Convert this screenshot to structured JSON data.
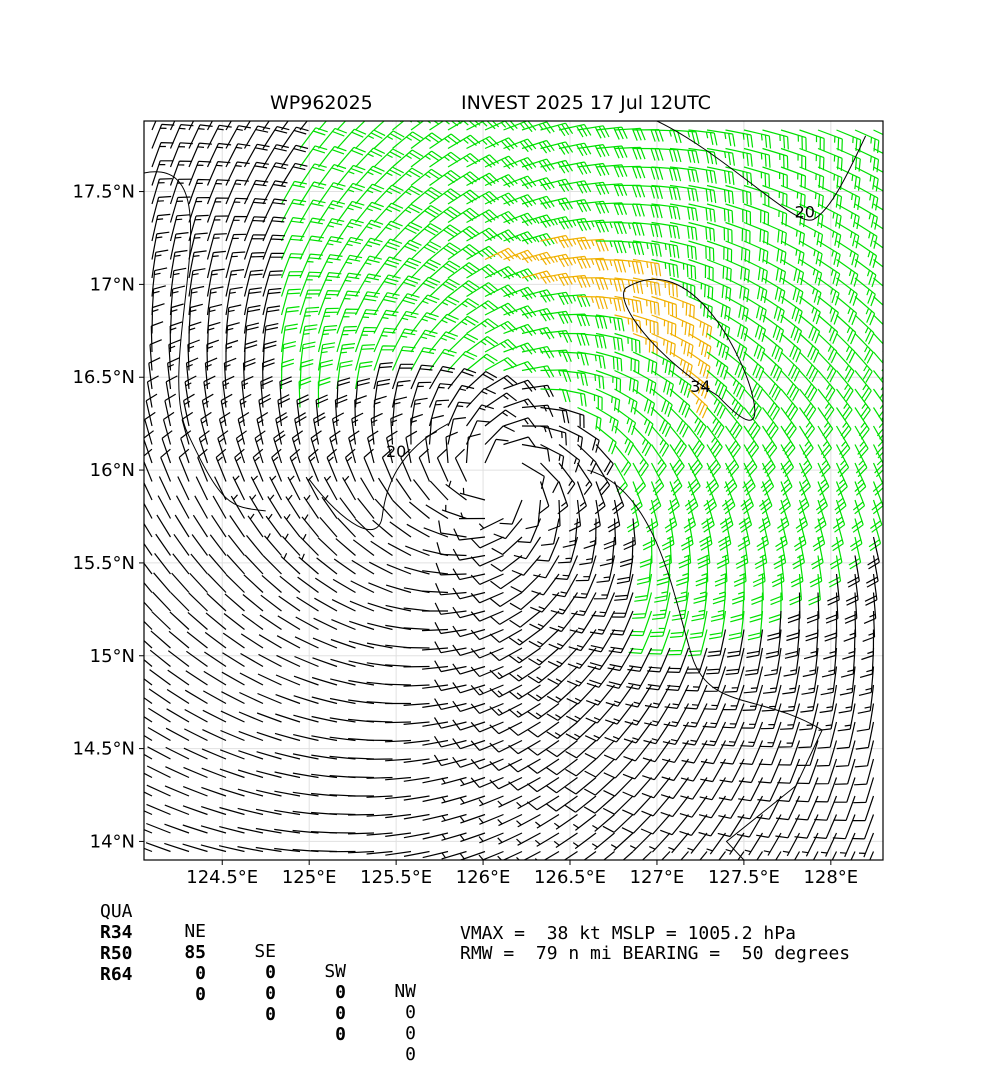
{
  "header": {
    "storm_id": "WP962025",
    "storm_name_time": "INVEST 2025 17 Jul 12UTC"
  },
  "chart_data": {
    "type": "wind-barb-map",
    "lon_range": [
      124.05,
      128.3
    ],
    "lat_range": [
      13.9,
      17.88
    ],
    "x_ticks": [
      "124.5°E",
      "125°E",
      "125.5°E",
      "126°E",
      "126.5°E",
      "127°E",
      "127.5°E",
      "128°E"
    ],
    "y_ticks": [
      "14°N",
      "14.5°N",
      "15°N",
      "15.5°N",
      "16°N",
      "16.5°N",
      "17°N",
      "17.5°N"
    ],
    "contour_labels": [
      "20",
      "34",
      "20"
    ],
    "center": {
      "lon": 126.1,
      "lat": 15.95
    },
    "rmw_nmi": 79,
    "grid": true,
    "colors": {
      "below_20kt": "#000000",
      "20_to_34kt": "#00e000",
      "34_to_50kt": "#f0b000"
    }
  },
  "table": {
    "header": [
      "QUA",
      "NE",
      "SE",
      "SW",
      "NW"
    ],
    "rows": [
      {
        "label": "R34",
        "values": [
          "85",
          "0",
          "0",
          "0"
        ]
      },
      {
        "label": "R50",
        "values": [
          "0",
          "0",
          "0",
          "0"
        ]
      },
      {
        "label": "R64",
        "values": [
          "0",
          "0",
          "0",
          "0"
        ]
      }
    ]
  },
  "stats": {
    "line1": "VMAX =  38 kt MSLP = 1005.2 hPa",
    "line2": "RMW =  79 n mi BEARING =  50 degrees"
  }
}
